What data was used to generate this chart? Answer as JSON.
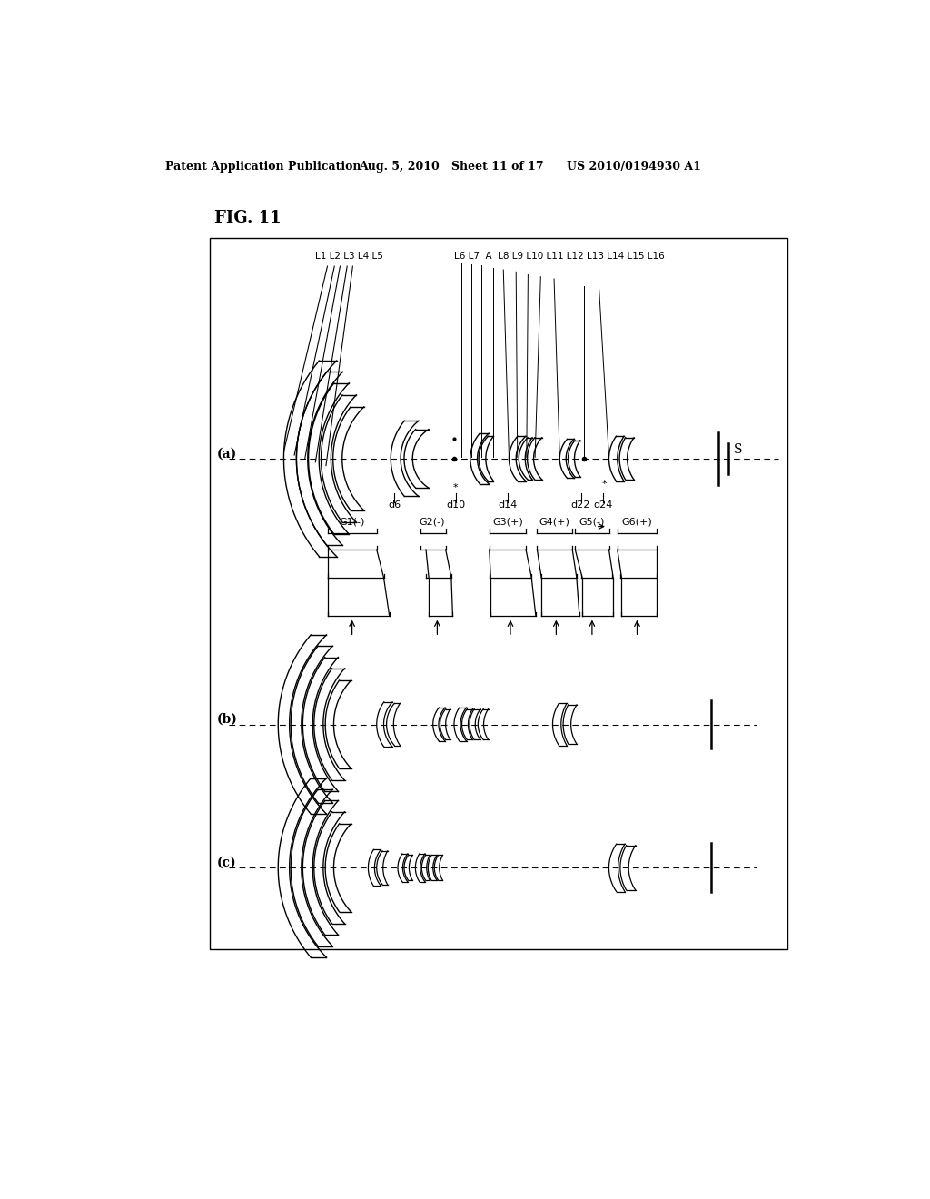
{
  "title_text": "FIG. 11",
  "header_left": "Patent Application Publication",
  "header_mid": "Aug. 5, 2010   Sheet 11 of 17",
  "header_right": "US 2010/0194930 A1",
  "bg_color": "#ffffff",
  "text_color": "#000000",
  "line_color": "#000000",
  "label_a": "(a)",
  "label_b": "(b)",
  "label_c": "(c)",
  "lens_labels_left": "L1 L2 L3 L4 L5",
  "lens_labels_right": "L6 L7  A  L8 L9 L10 L11 L12 L13 L14 L15 L16",
  "d_labels": [
    "d6",
    "d10",
    "d14",
    "d22",
    "d24"
  ],
  "group_labels": [
    "G1(-)",
    "G2(-)",
    "G3(+)",
    "G4(+)",
    "G5(-)",
    "G6(+)"
  ],
  "sensor_label": "S"
}
